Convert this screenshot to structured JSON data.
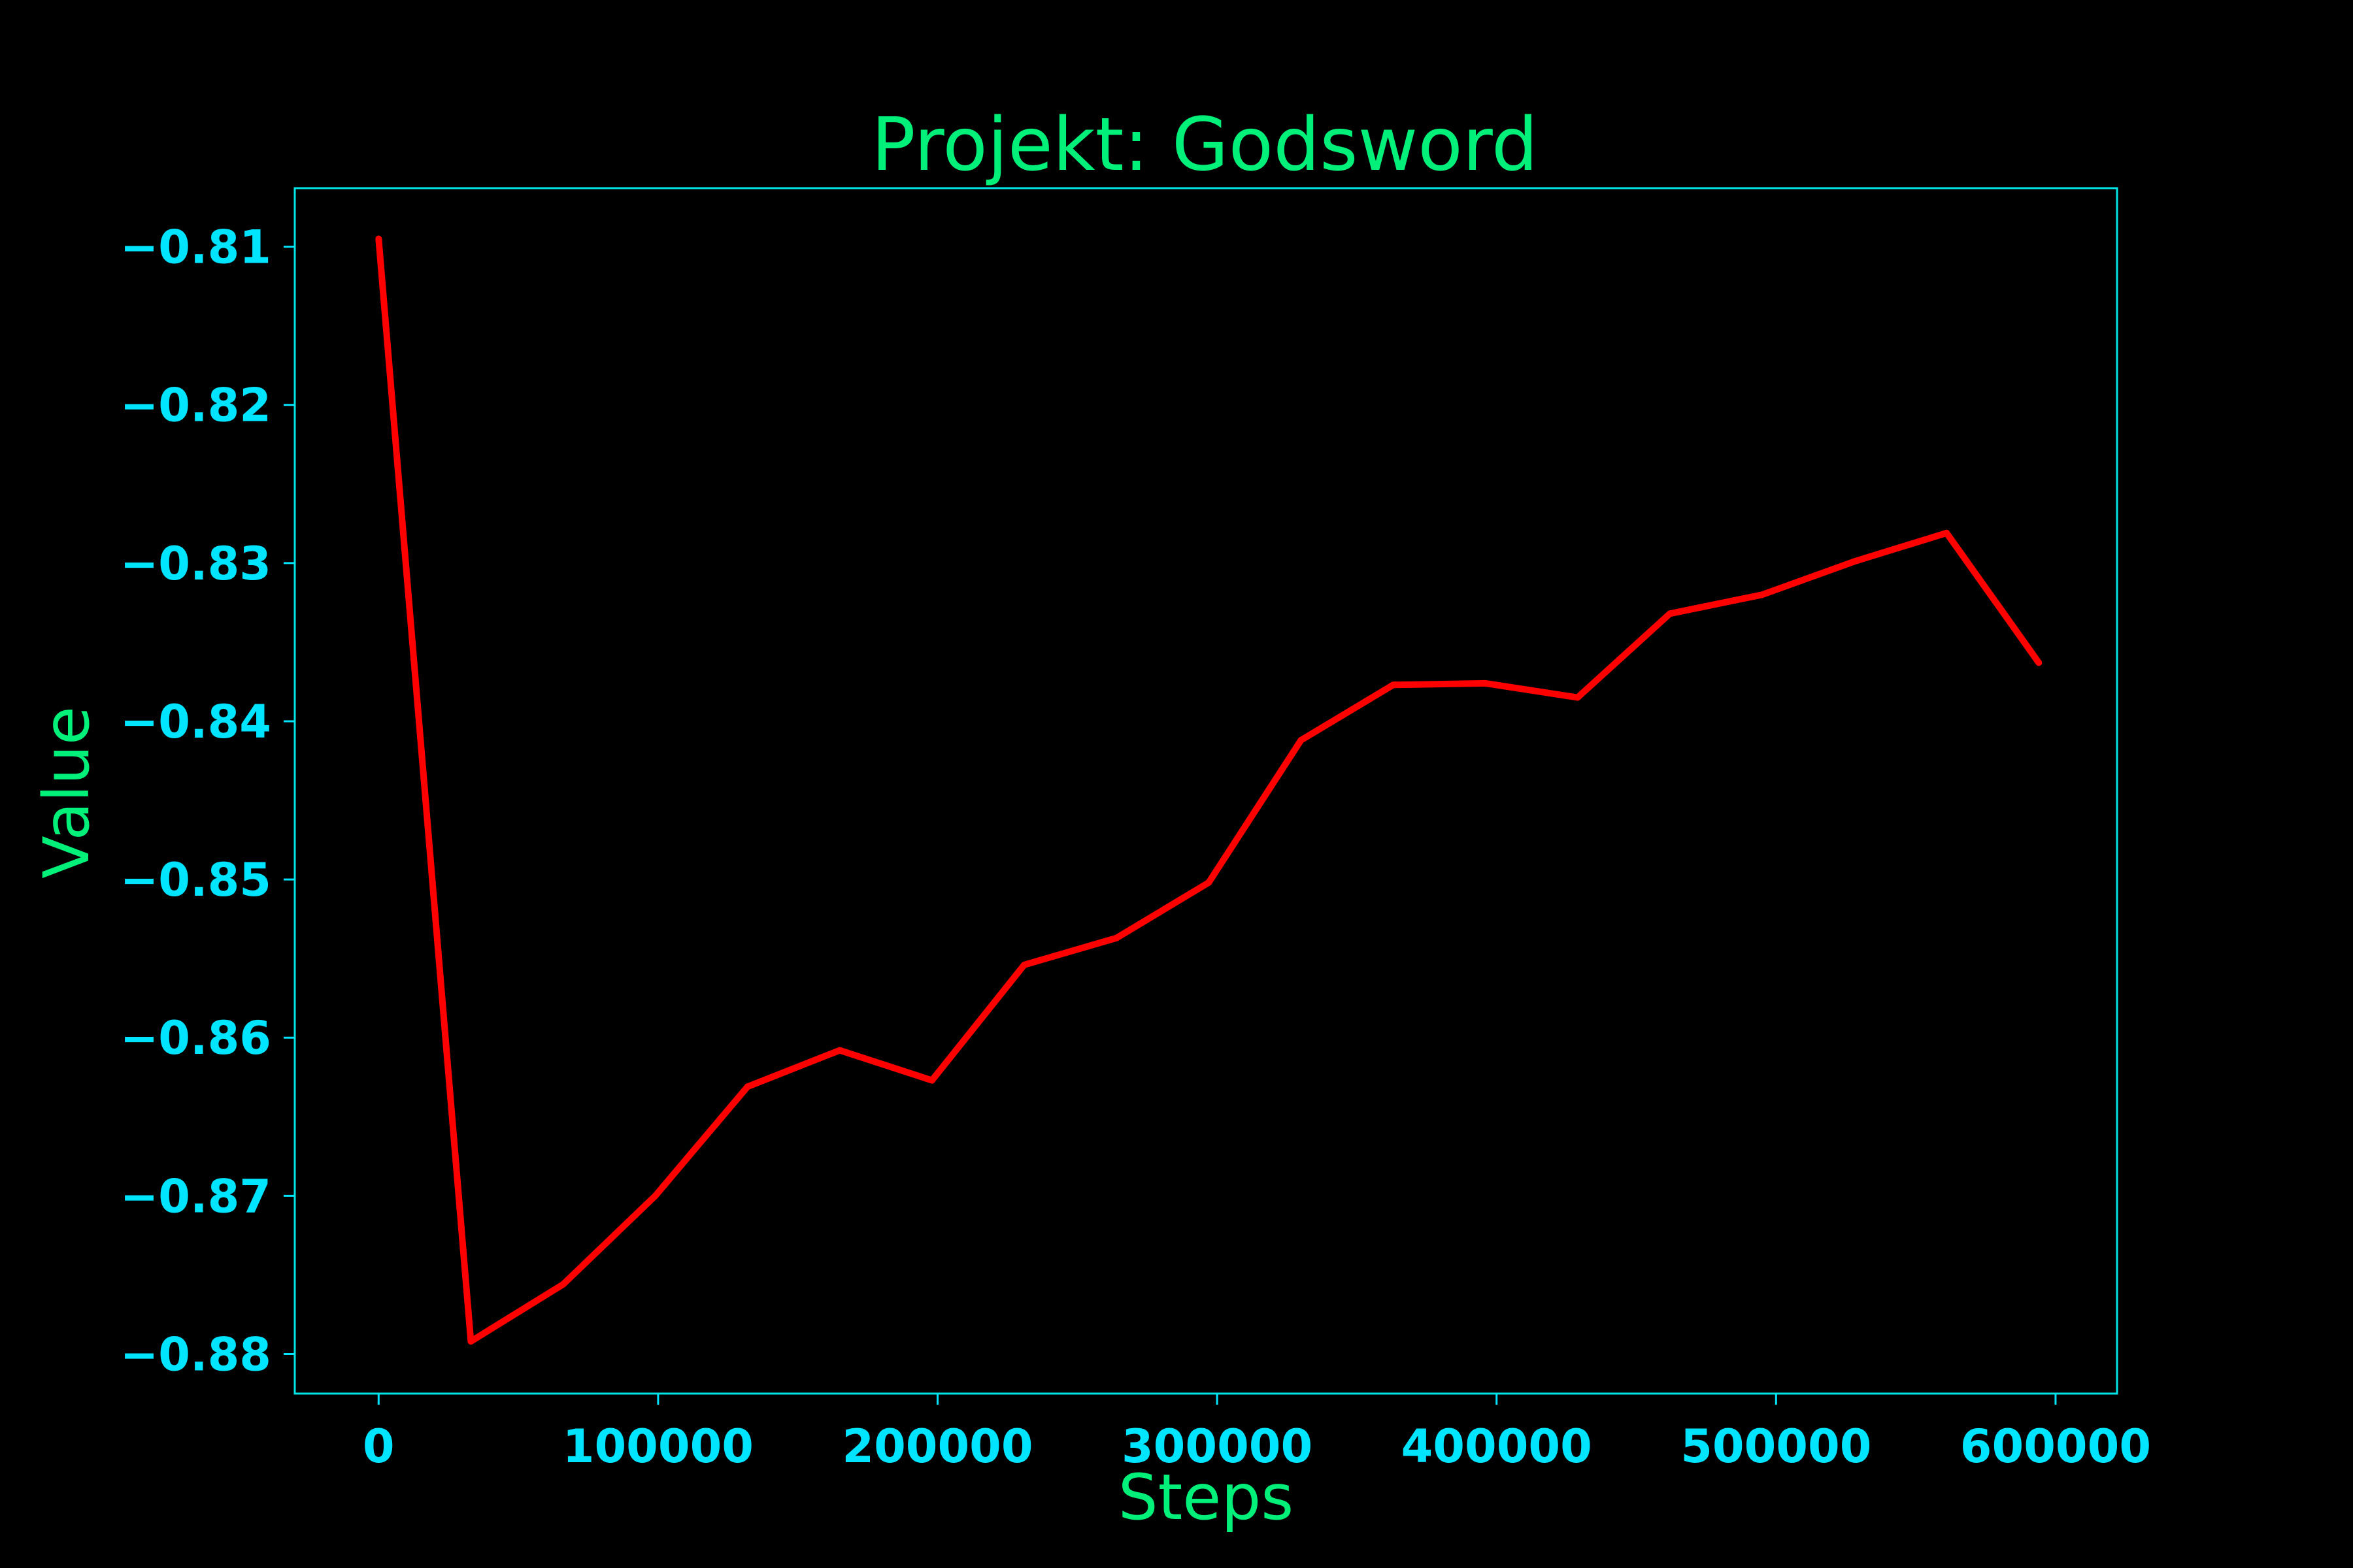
{
  "chart_data": {
    "type": "line",
    "title": "Projekt: Godsword",
    "xlabel": "Steps",
    "ylabel": "Value",
    "xlim": [
      -30000,
      622000
    ],
    "ylim": [
      -0.8825,
      -0.8063
    ],
    "x_ticks": [
      0,
      100000,
      200000,
      300000,
      400000,
      500000,
      600000
    ],
    "x_tick_labels": [
      "0",
      "100000",
      "200000",
      "300000",
      "400000",
      "500000",
      "600000"
    ],
    "y_ticks": [
      -0.81,
      -0.82,
      -0.83,
      -0.84,
      -0.85,
      -0.86,
      -0.87,
      -0.88
    ],
    "y_tick_labels": [
      "−0.81",
      "−0.82",
      "−0.83",
      "−0.84",
      "−0.85",
      "−0.86",
      "−0.87",
      "−0.88"
    ],
    "grid": false,
    "series": [
      {
        "x": [
          0,
          33000,
          66000,
          99000,
          132000,
          165000,
          198000,
          231000,
          264000,
          297000,
          330000,
          363000,
          396000,
          429000,
          462000,
          495000,
          528000,
          561000,
          594000
        ],
        "y": [
          -0.8095,
          -0.8792,
          -0.8756,
          -0.87,
          -0.8631,
          -0.8608,
          -0.8627,
          -0.8554,
          -0.8537,
          -0.8502,
          -0.8412,
          -0.8377,
          -0.8376,
          -0.8385,
          -0.8332,
          -0.832,
          -0.8299,
          -0.8281,
          -0.8363
        ]
      }
    ],
    "colors": {
      "background": "#000000",
      "line": "#ff0000",
      "frame": "#00e5e5",
      "ticks": "#00e5ff",
      "title": "#00f07a",
      "labels": "#00f07a"
    }
  }
}
